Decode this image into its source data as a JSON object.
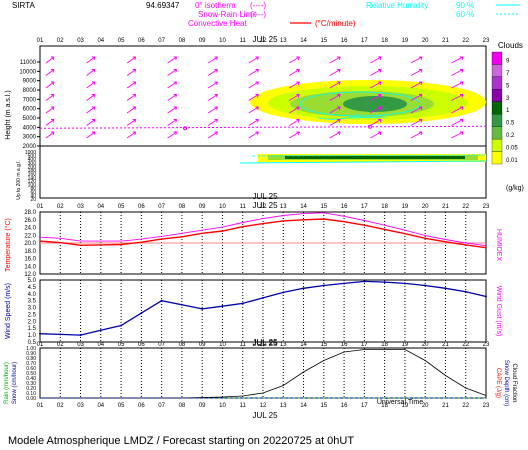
{
  "header": {
    "station": "SIRTA",
    "coords": "94.69347",
    "zero_isotherm": "0° isotherm",
    "snow_rain_limit": "Snow-Rain Limit",
    "convective_heat": "Convective Heat",
    "convective_unit": "(°C/minute)",
    "legend_dashes_1": "(----)",
    "legend_dashes_2": "(----)",
    "relative_humidity": "Relative Humidity",
    "rh_90": "90 %",
    "rh_60": "60 %"
  },
  "hours": [
    "01",
    "02",
    "03",
    "04",
    "05",
    "06",
    "07",
    "08",
    "09",
    "10",
    "11",
    "12",
    "13",
    "14",
    "15",
    "16",
    "17",
    "18",
    "19",
    "20",
    "21",
    "22",
    "23"
  ],
  "date_label": "JUL 25",
  "footer": "Modele Atmospherique LMDZ / Forecast starting on 20220725 at 0hUT",
  "universal_time": "Universal Time",
  "colors": {
    "magenta": "#ff00ff",
    "cyan": "#00ffff",
    "red": "#ff0000",
    "navy": "#0000aa",
    "cloud_scale": [
      "#ffff00",
      "#ccff00",
      "#99dd33",
      "#66bb44",
      "#339944",
      "#006600",
      "#8800aa",
      "#aa33cc",
      "#cc66dd",
      "#ee00ee"
    ]
  },
  "clouds": {
    "title": "Clouds",
    "unit": "(g/kg)",
    "scale_labels": [
      "9",
      "7",
      "5",
      "3",
      "1",
      "0.5",
      "0.2",
      "0.05",
      "0.01"
    ]
  },
  "chart_data": [
    {
      "type": "heatmap",
      "title": "Clouds",
      "ylabel": "Height (m a.s.l.)",
      "ylabel2": "Up to 200 m a.g.l.",
      "upper_ticks": [
        "11000",
        "10000",
        "9000",
        "8000",
        "7000",
        "6000",
        "5000",
        "4000",
        "3000",
        "2000"
      ],
      "lower_ticks": [
        "1000",
        "500",
        "400",
        "300",
        "200",
        "180",
        "160",
        "140",
        "120",
        "100",
        "80",
        "60",
        "40",
        "20"
      ],
      "zero_isotherm_m": 3900,
      "wind_arrow_rows": 7
    },
    {
      "type": "line",
      "ylabel": "Temperature (°C)",
      "ylabel2": "HUMIDEX",
      "y_ticks": [
        "28.0",
        "26.0",
        "24.0",
        "22.0",
        "20.0",
        "18.0",
        "16.0",
        "14.0",
        "12.0"
      ],
      "ylim": [
        12,
        28
      ],
      "temperature": [
        20.5,
        20.1,
        19.4,
        19.5,
        19.6,
        20.2,
        21.0,
        21.6,
        22.5,
        23.1,
        24.2,
        25.0,
        25.7,
        26.0,
        26.2,
        25.5,
        24.6,
        23.5,
        22.4,
        21.2,
        20.3,
        19.5,
        18.8
      ],
      "humidex": [
        21.5,
        21.2,
        20.5,
        20.5,
        20.5,
        21.0,
        21.7,
        22.5,
        23.3,
        24.1,
        25.3,
        26.3,
        27.1,
        27.6,
        27.8,
        26.9,
        25.8,
        24.6,
        23.3,
        21.9,
        20.9,
        20.0,
        19.3
      ]
    },
    {
      "type": "line",
      "ylabel": "Wind Speed (m/s)",
      "ylabel2": "Wind Gust (m/s)",
      "y_ticks": [
        "5.0",
        "4.5",
        "4.0",
        "3.5",
        "3.0",
        "2.5",
        "2.0",
        "1.5",
        "1.0",
        "0.5"
      ],
      "ylim": [
        0.5,
        5
      ],
      "wind_speed": [
        1.1,
        1.05,
        1.0,
        1.35,
        1.7,
        2.6,
        3.5,
        3.2,
        2.9,
        3.1,
        3.3,
        3.7,
        4.1,
        4.4,
        4.6,
        4.75,
        4.9,
        4.85,
        4.75,
        4.6,
        4.4,
        4.15,
        3.8
      ]
    },
    {
      "type": "line",
      "ylabel": "Rain (mm/hour)",
      "ylabel2": "Snow (cm/hour)",
      "ylabel3": "CAPE (J/g)",
      "ylabel4": "Snow Depth (cm)",
      "ylabel5": "Cloud Fraction",
      "y_ticks": [
        "1.00",
        "0.90",
        "0.80",
        "0.70",
        "0.60",
        "0.50",
        "0.40",
        "0.30",
        "0.20",
        "0.10",
        "0.00"
      ],
      "ylim": [
        0,
        1
      ],
      "cloud_fraction": [
        0,
        0,
        0,
        0,
        0,
        0,
        0,
        0,
        0.01,
        0.02,
        0.04,
        0.1,
        0.25,
        0.52,
        0.75,
        0.92,
        0.97,
        0.97,
        0.97,
        0.75,
        0.45,
        0.2,
        0.05
      ],
      "rain": [
        0,
        0,
        0,
        0,
        0,
        0,
        0,
        0,
        0,
        0,
        0,
        0,
        0,
        0,
        0,
        0,
        0,
        0,
        0,
        0,
        0,
        0,
        0
      ]
    }
  ]
}
